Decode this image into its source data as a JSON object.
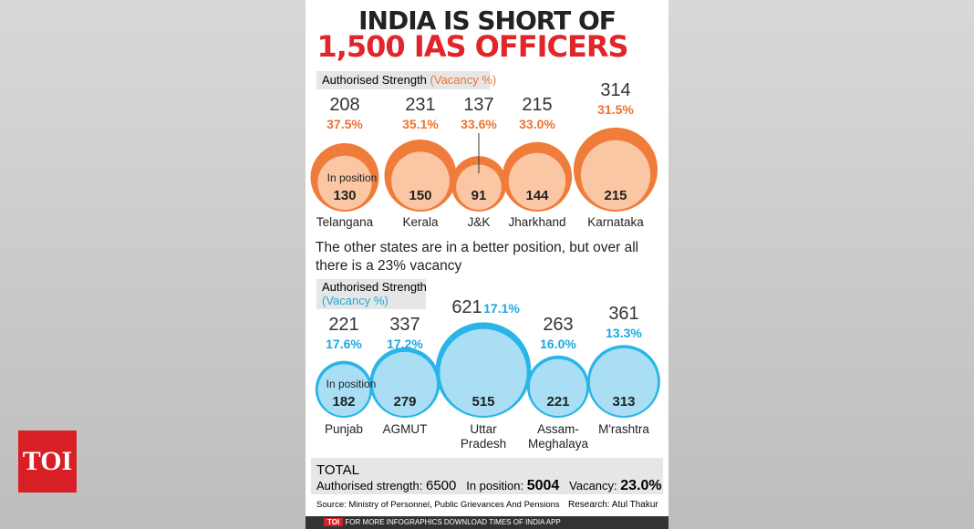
{
  "header": {
    "title_line1": "INDIA IS SHORT OF",
    "title_line2": "1,500 IAS OFFICERS"
  },
  "section1": {
    "label": "Authorised Strength",
    "label_note": "(Vacancy %)",
    "in_position_label": "In position",
    "items": [
      {
        "state": "Telangana",
        "authorised": 208,
        "vacancy": "37.5%",
        "in_position": 130
      },
      {
        "state": "Kerala",
        "authorised": 231,
        "vacancy": "35.1%",
        "in_position": 150
      },
      {
        "state": "J&K",
        "authorised": 137,
        "vacancy": "33.6%",
        "in_position": 91
      },
      {
        "state": "Jharkhand",
        "authorised": 215,
        "vacancy": "33.0%",
        "in_position": 144
      },
      {
        "state": "Karnataka",
        "authorised": 314,
        "vacancy": "31.5%",
        "in_position": 215
      }
    ]
  },
  "note": "The other states are in a better position, but over all there is a 23% vacancy",
  "section2": {
    "label": "Authorised Strength",
    "label_note": "(Vacancy %)",
    "in_position_label": "In position",
    "items": [
      {
        "state": "Punjab",
        "authorised": 221,
        "vacancy": "17.6%",
        "in_position": 182
      },
      {
        "state": "AGMUT",
        "authorised": 337,
        "vacancy": "17.2%",
        "in_position": 279
      },
      {
        "state": "Uttar Pradesh",
        "authorised": 621,
        "vacancy": "17.1%",
        "in_position": 515
      },
      {
        "state": "Assam-Meghalaya",
        "authorised": 263,
        "vacancy": "16.0%",
        "in_position": 221
      },
      {
        "state": "M'rashtra",
        "authorised": 361,
        "vacancy": "13.3%",
        "in_position": 313
      }
    ]
  },
  "total": {
    "title": "TOTAL",
    "authorised_label": "Authorised strength:",
    "authorised": 6500,
    "in_position_label": "In position:",
    "in_position": 5004,
    "vacancy_label": "Vacancy:",
    "vacancy": "23.0%"
  },
  "source": "Source: Ministry of Personnel, Public Grievances And Pensions",
  "research": "Research: Atul Thakur",
  "logo": "TOI",
  "footer": {
    "brand": "TOI",
    "text": "FOR MORE INFOGRAPHICS DOWNLOAD TIMES OF INDIA APP"
  }
}
